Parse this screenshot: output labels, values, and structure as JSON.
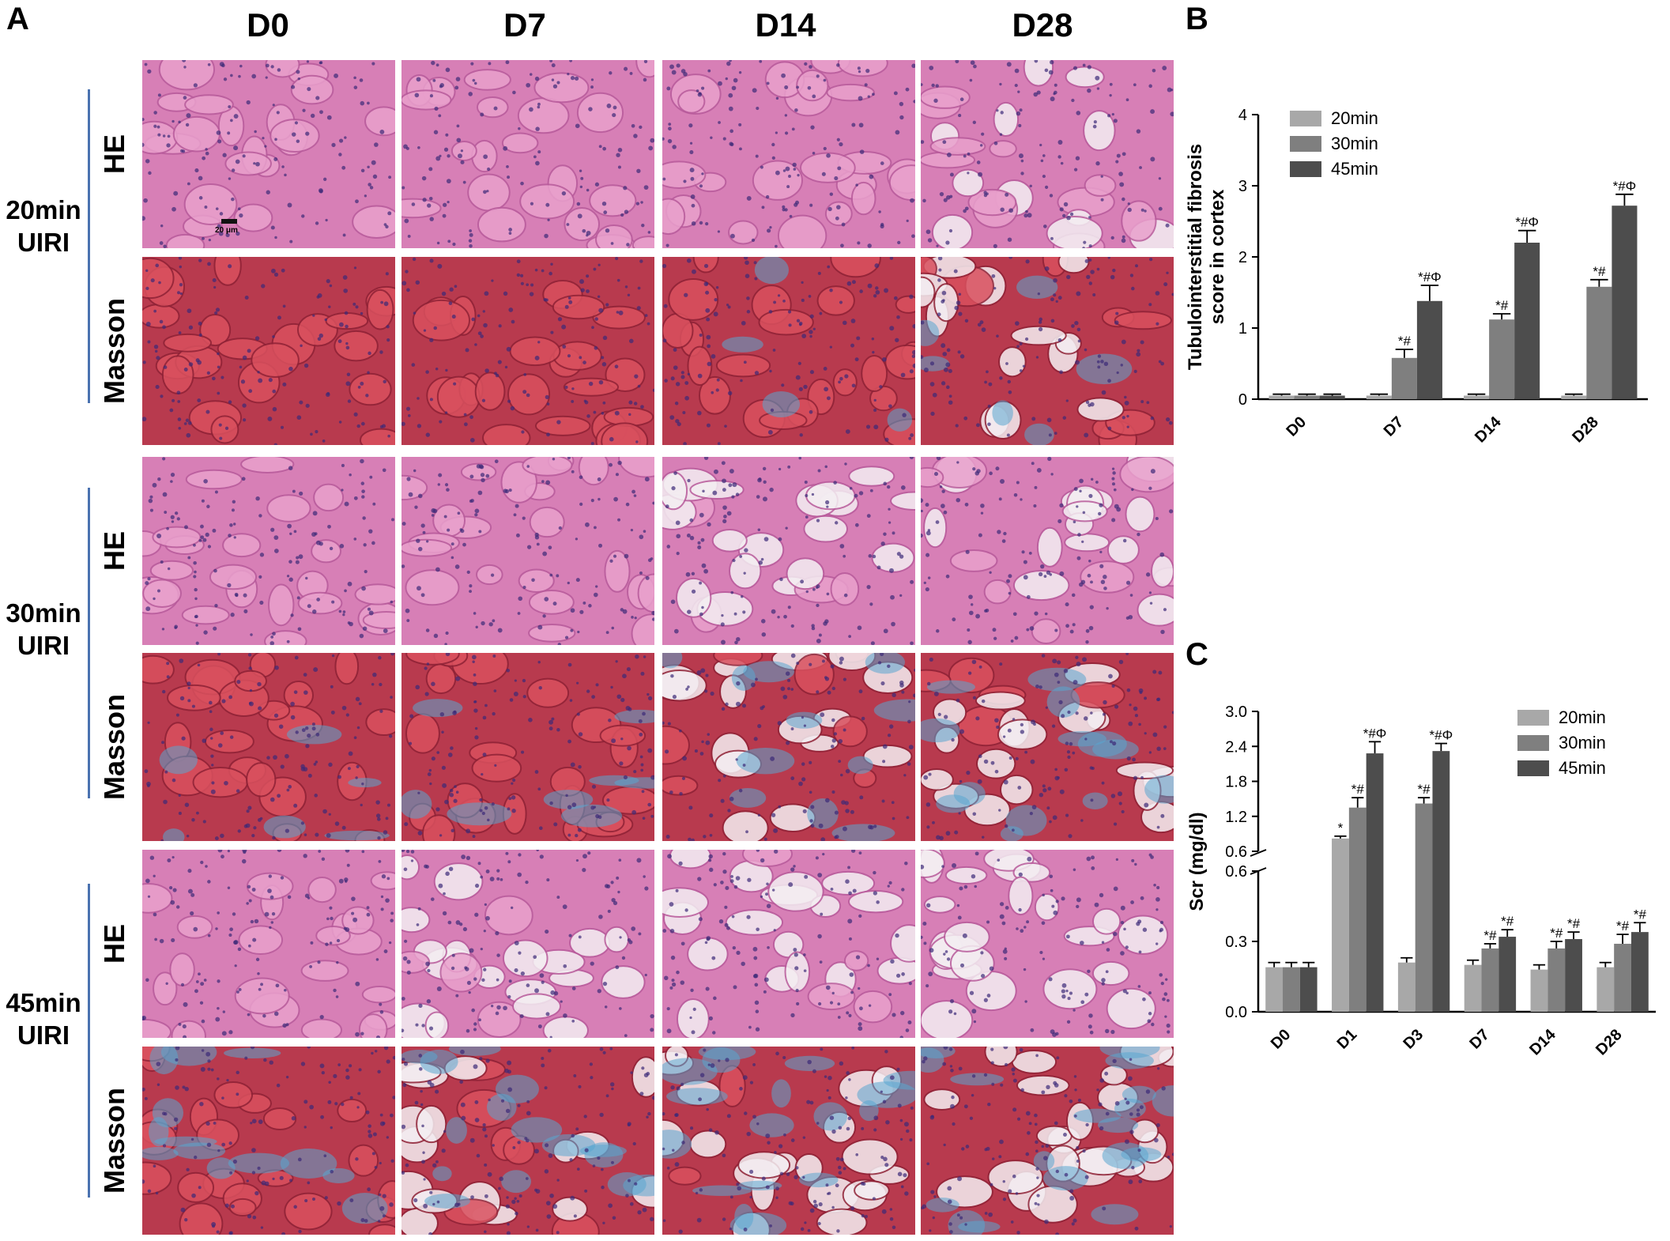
{
  "panel_a": {
    "letter": "A",
    "columns": [
      "D0",
      "D7",
      "D14",
      "D28"
    ],
    "groups": [
      {
        "label_line1": "20min",
        "label_line2": "UIRI",
        "rows": [
          "HE",
          "Masson"
        ]
      },
      {
        "label_line1": "30min",
        "label_line2": "UIRI",
        "rows": [
          "HE",
          "Masson"
        ]
      },
      {
        "label_line1": "45min",
        "label_line2": "UIRI",
        "rows": [
          "HE",
          "Masson"
        ]
      }
    ],
    "scale_bar_label": "20 μm",
    "colors": {
      "he_base": "#d77fb6",
      "masson_base": "#b83a4e",
      "masson_fibrosis": "#5aa6cf",
      "nuclei": "#3c2a78"
    }
  },
  "chart_data": [
    {
      "panel": "B",
      "type": "bar",
      "title": "",
      "xlabel": "",
      "ylabel": "Tubulointerstitial fibrosis score in cortex",
      "ylabel_line1": "Tubulointerstitial fibrosis",
      "ylabel_line2": "score in cortex",
      "categories": [
        "D0",
        "D7",
        "D14",
        "D28"
      ],
      "ylim": [
        0,
        4
      ],
      "yticks": [
        "0",
        "1",
        "2",
        "3",
        "4"
      ],
      "legend_position": "top-left",
      "grid": false,
      "series": [
        {
          "name": "20min",
          "color": "#a8a8a8",
          "values": [
            0.05,
            0.05,
            0.05,
            0.05
          ],
          "errors": [
            0.02,
            0.02,
            0.02,
            0.02
          ],
          "annotations": [
            "",
            "",
            "",
            ""
          ]
        },
        {
          "name": "30min",
          "color": "#7f7f7f",
          "values": [
            0.05,
            0.58,
            1.12,
            1.58
          ],
          "errors": [
            0.02,
            0.12,
            0.08,
            0.1
          ],
          "annotations": [
            "",
            "*#",
            "*#",
            "*#"
          ]
        },
        {
          "name": "45min",
          "color": "#4d4d4d",
          "values": [
            0.05,
            1.38,
            2.2,
            2.72
          ],
          "errors": [
            0.02,
            0.22,
            0.17,
            0.16
          ],
          "annotations": [
            "",
            "*#Φ",
            "*#Φ",
            "*#Φ"
          ]
        }
      ]
    },
    {
      "panel": "C",
      "type": "bar",
      "title": "",
      "xlabel": "",
      "ylabel": "Scr (mg/dl)",
      "categories": [
        "D0",
        "D1",
        "D3",
        "D7",
        "D14",
        "D28"
      ],
      "axis_break": true,
      "lower_ylim": [
        0,
        0.6
      ],
      "lower_yticks": [
        "0.0",
        "0.3",
        "0.6"
      ],
      "upper_ylim": [
        0.6,
        3.0
      ],
      "upper_yticks": [
        "0.6",
        "1.2",
        "1.8",
        "2.4",
        "3.0"
      ],
      "legend_position": "top-right",
      "grid": false,
      "series": [
        {
          "name": "20min",
          "color": "#a8a8a8",
          "values": [
            0.19,
            0.82,
            0.21,
            0.2,
            0.18,
            0.19
          ],
          "errors": [
            0.02,
            0.04,
            0.02,
            0.02,
            0.02,
            0.02
          ],
          "annotations": [
            "",
            "*",
            "",
            "",
            "",
            ""
          ]
        },
        {
          "name": "30min",
          "color": "#7f7f7f",
          "values": [
            0.19,
            1.35,
            null,
            0.27,
            0.27,
            0.29
          ],
          "errors": [
            0.02,
            0.17,
            null,
            0.02,
            0.03,
            0.04
          ],
          "annotations": [
            "",
            "*#",
            "",
            "*#",
            "*#",
            "*#"
          ]
        },
        {
          "name": "45min",
          "color": "#4d4d4d",
          "values": [
            0.19,
            2.28,
            2.32,
            0.32,
            0.31,
            0.34
          ],
          "errors": [
            0.02,
            0.2,
            0.13,
            0.03,
            0.03,
            0.04
          ],
          "annotations": [
            "",
            "*#Φ",
            "*#Φ",
            "*#",
            "*#",
            "*#"
          ]
        }
      ],
      "d3_30min_value": 1.42,
      "d3_30min_error": 0.1,
      "d3_30min_annotation": "*#"
    }
  ]
}
